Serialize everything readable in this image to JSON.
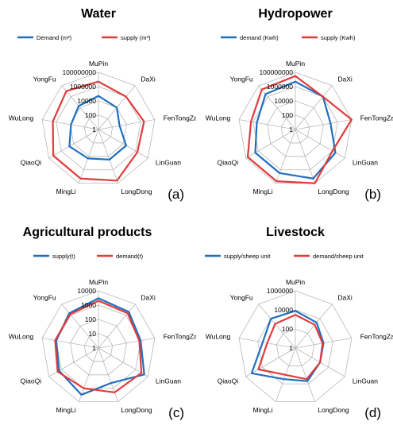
{
  "chart_data": [
    {
      "type": "radar",
      "title": "Water",
      "panel_label": "(a)",
      "scale": "log10",
      "categories": [
        "MuPin",
        "DaXi",
        "FenTongZai",
        "LinGuan",
        "LongDong",
        "MingLi",
        "QiaoQi",
        "WuLong",
        "YongFu"
      ],
      "ticks": [
        "1",
        "100",
        "10000",
        "1000000",
        "100000000"
      ],
      "rlim": [
        1,
        100000000
      ],
      "legend_position": "top",
      "series": [
        {
          "name": "Demand (m³)",
          "color": "#1f6fbf",
          "values": [
            50000,
            10000,
            1000,
            30000,
            30000,
            20000,
            50000,
            8000,
            20000
          ]
        },
        {
          "name": "supply (m³)",
          "color": "#e03c3c",
          "values": [
            5000000,
            1000000,
            3000000,
            2000000,
            40000000,
            20000000,
            20000000,
            3000000,
            10000000
          ]
        }
      ]
    },
    {
      "type": "radar",
      "title": "Hydropower",
      "panel_label": "(b)",
      "scale": "log10",
      "categories": [
        "MuPin",
        "DaXi",
        "FenTongZai",
        "LinGuan",
        "LongDong",
        "MingLi",
        "QiaoQi",
        "WuLong",
        "YongFu"
      ],
      "ticks": [
        "1",
        "100",
        "10000",
        "1000000",
        "100000000"
      ],
      "rlim": [
        1,
        100000000
      ],
      "legend_position": "top",
      "series": [
        {
          "name": "demand (Kwh)",
          "color": "#1f6fbf",
          "values": [
            5000000,
            1000000,
            100000,
            3000000,
            20000000,
            3000000,
            3000000,
            300000,
            3000000
          ]
        },
        {
          "name": "supply (Kwh)",
          "color": "#e03c3c",
          "values": [
            30000000,
            1000000,
            100000000,
            1000000,
            100000000,
            50000000,
            50000000,
            2000000,
            20000000
          ]
        }
      ]
    },
    {
      "type": "radar",
      "title": "Agricultural products",
      "panel_label": "(c)",
      "scale": "log10",
      "categories": [
        "MuPin",
        "DaXi",
        "FenTongZai",
        "LinGuan",
        "LongDong",
        "MingLi",
        "QiaoQi",
        "WuLong",
        "YongFu"
      ],
      "ticks": [
        "1",
        "10",
        "100",
        "1000",
        "10000"
      ],
      "rlim": [
        1,
        10000
      ],
      "legend_position": "top",
      "series": [
        {
          "name": "supply(t)",
          "color": "#1f6fbf",
          "values": [
            3000,
            2000,
            1000,
            5000,
            400,
            3000,
            1500,
            1000,
            1500
          ]
        },
        {
          "name": "demand(t)",
          "color": "#e03c3c",
          "values": [
            2000,
            1500,
            800,
            3000,
            2000,
            1000,
            2000,
            1200,
            1200
          ]
        }
      ]
    },
    {
      "type": "radar",
      "title": "Livestock",
      "panel_label": "(d)",
      "scale": "log10",
      "categories": [
        "MuPin",
        "DaXi",
        "FenTongZai",
        "LinGuan",
        "LongDong",
        "MingLi",
        "QiaoQi",
        "WuLong",
        "YongFu"
      ],
      "ticks": [
        "1",
        "100",
        "10000",
        "1000000"
      ],
      "rlim": [
        1,
        1000000
      ],
      "legend_position": "top",
      "series": [
        {
          "name": "supply/sheep unit",
          "color": "#1f6fbf",
          "values": [
            8000,
            3000,
            1000,
            1000,
            5000,
            3000,
            200000,
            3000,
            10000
          ]
        },
        {
          "name": "demand/sheep unit",
          "color": "#e03c3c",
          "values": [
            3000,
            1500,
            800,
            1000,
            3000,
            1000,
            30000,
            1000,
            2000
          ]
        }
      ]
    }
  ]
}
